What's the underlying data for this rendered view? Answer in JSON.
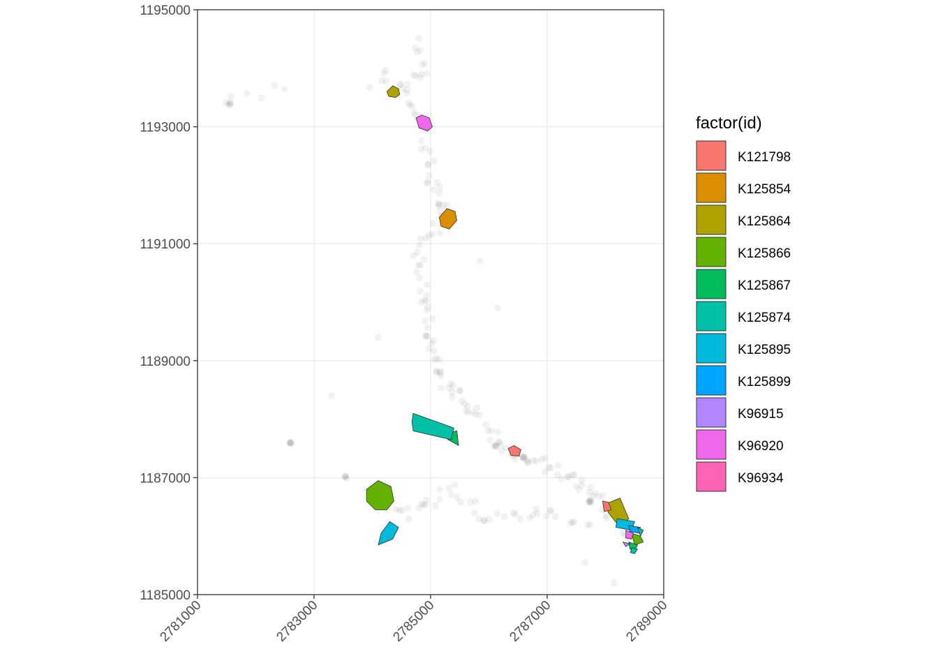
{
  "chart_data": {
    "type": "scatter",
    "xlim": [
      2781000,
      2789000
    ],
    "ylim": [
      1185000,
      1195000
    ],
    "x_ticks": [
      2781000,
      2783000,
      2785000,
      2787000,
      2789000
    ],
    "y_ticks": [
      1185000,
      1187000,
      1189000,
      1191000,
      1193000,
      1195000
    ],
    "x_tick_labels": [
      "2781000",
      "2783000",
      "2785000",
      "2787000",
      "2789000"
    ],
    "y_tick_labels": [
      "1185000",
      "1187000",
      "1189000",
      "1191000",
      "1193000",
      "1195000"
    ],
    "xlabel": "",
    "ylabel": "",
    "grid": true,
    "legend": {
      "title": "factor(id)",
      "placement": "right",
      "entries": [
        {
          "name": "K121798",
          "color": "#F8766D"
        },
        {
          "name": "K125854",
          "color": "#DB8E00"
        },
        {
          "name": "K125864",
          "color": "#AEA200"
        },
        {
          "name": "K125866",
          "color": "#64B200"
        },
        {
          "name": "K125867",
          "color": "#00BD5C"
        },
        {
          "name": "K125874",
          "color": "#00C1A7"
        },
        {
          "name": "K125895",
          "color": "#00BADE"
        },
        {
          "name": "K125899",
          "color": "#00A6FF"
        },
        {
          "name": "K96915",
          "color": "#B385FF"
        },
        {
          "name": "K96920",
          "color": "#EF67EB"
        },
        {
          "name": "K96934",
          "color": "#FF63B6"
        }
      ]
    },
    "point_style": {
      "color": "#000000",
      "opacity": 0.05
    },
    "point_paths": [
      {
        "from": [
          2784800,
          1194500
        ],
        "to": [
          2784900,
          1194000
        ],
        "n": 6
      },
      {
        "from": [
          2784900,
          1194000
        ],
        "to": [
          2784500,
          1193700
        ],
        "n": 8
      },
      {
        "from": [
          2784500,
          1193700
        ],
        "to": [
          2784900,
          1193000
        ],
        "n": 10
      },
      {
        "from": [
          2784900,
          1193000
        ],
        "to": [
          2785000,
          1192000
        ],
        "n": 12
      },
      {
        "from": [
          2785000,
          1192000
        ],
        "to": [
          2785300,
          1191500
        ],
        "n": 10
      },
      {
        "from": [
          2785300,
          1191500
        ],
        "to": [
          2784800,
          1190900
        ],
        "n": 12
      },
      {
        "from": [
          2784800,
          1190900
        ],
        "to": [
          2785000,
          1189600
        ],
        "n": 16
      },
      {
        "from": [
          2785000,
          1189600
        ],
        "to": [
          2785100,
          1188700
        ],
        "n": 14
      },
      {
        "from": [
          2785100,
          1188700
        ],
        "to": [
          2785600,
          1188300
        ],
        "n": 12
      },
      {
        "from": [
          2785600,
          1188300
        ],
        "to": [
          2786300,
          1187500
        ],
        "n": 16
      },
      {
        "from": [
          2786300,
          1187500
        ],
        "to": [
          2787400,
          1187000
        ],
        "n": 20
      },
      {
        "from": [
          2787400,
          1187000
        ],
        "to": [
          2787900,
          1186600
        ],
        "n": 12
      },
      {
        "from": [
          2787900,
          1186600
        ],
        "to": [
          2788500,
          1185900
        ],
        "n": 12
      },
      {
        "from": [
          2784200,
          1186700
        ],
        "to": [
          2784700,
          1186400
        ],
        "n": 8
      },
      {
        "from": [
          2784700,
          1186400
        ],
        "to": [
          2785200,
          1186700
        ],
        "n": 8
      },
      {
        "from": [
          2785300,
          1186900
        ],
        "to": [
          2786000,
          1186300
        ],
        "n": 10
      },
      {
        "from": [
          2786000,
          1186300
        ],
        "to": [
          2787000,
          1186400
        ],
        "n": 12
      },
      {
        "from": [
          2787000,
          1186400
        ],
        "to": [
          2787800,
          1186200
        ],
        "n": 8
      },
      {
        "from": [
          2781500,
          1193400
        ],
        "to": [
          2782400,
          1193700
        ],
        "n": 6
      },
      {
        "from": [
          2784000,
          1193700
        ],
        "to": [
          2784300,
          1193900
        ],
        "n": 5
      }
    ],
    "point_clusters": [
      {
        "x": 2782600,
        "y": 1187600,
        "n": 5
      },
      {
        "x": 2783550,
        "y": 1187000,
        "n": 4
      },
      {
        "x": 2781550,
        "y": 1193400,
        "n": 4
      },
      {
        "x": 2787750,
        "y": 1186600,
        "n": 5
      },
      {
        "x": 2786600,
        "y": 1187350,
        "n": 5
      },
      {
        "x": 2786100,
        "y": 1187550,
        "n": 4
      }
    ],
    "point_outliers": [
      [
        2783300,
        1188400
      ],
      [
        2784100,
        1189400
      ],
      [
        2787650,
        1185550
      ],
      [
        2788150,
        1185200
      ],
      [
        2785850,
        1190700
      ],
      [
        2786150,
        1189900
      ]
    ],
    "polygons": [
      {
        "name": "K125864",
        "points": [
          [
            2784250,
            1193600
          ],
          [
            2784350,
            1193700
          ],
          [
            2784450,
            1193650
          ],
          [
            2784470,
            1193550
          ],
          [
            2784400,
            1193500
          ],
          [
            2784280,
            1193520
          ]
        ]
      },
      {
        "name": "K96920",
        "points": [
          [
            2784750,
            1193150
          ],
          [
            2784850,
            1193200
          ],
          [
            2784980,
            1193150
          ],
          [
            2785030,
            1193000
          ],
          [
            2784950,
            1192930
          ],
          [
            2784800,
            1192980
          ]
        ]
      },
      {
        "name": "K125854",
        "points": [
          [
            2785150,
            1191450
          ],
          [
            2785280,
            1191600
          ],
          [
            2785420,
            1191550
          ],
          [
            2785450,
            1191400
          ],
          [
            2785320,
            1191250
          ],
          [
            2785180,
            1191300
          ]
        ]
      },
      {
        "name": "K125867",
        "points": [
          [
            2785250,
            1187750
          ],
          [
            2785450,
            1187800
          ],
          [
            2785480,
            1187550
          ],
          [
            2785300,
            1187650
          ]
        ]
      },
      {
        "name": "K125874",
        "points": [
          [
            2784700,
            1188100
          ],
          [
            2785400,
            1187850
          ],
          [
            2785350,
            1187650
          ],
          [
            2784700,
            1187800
          ],
          [
            2784680,
            1187950
          ]
        ]
      },
      {
        "name": "K121798",
        "points": [
          [
            2786330,
            1187500
          ],
          [
            2786430,
            1187550
          ],
          [
            2786550,
            1187480
          ],
          [
            2786520,
            1187370
          ],
          [
            2786380,
            1187380
          ]
        ]
      },
      {
        "name": "K125866",
        "points": [
          [
            2783900,
            1186800
          ],
          [
            2784100,
            1186950
          ],
          [
            2784320,
            1186850
          ],
          [
            2784370,
            1186600
          ],
          [
            2784250,
            1186450
          ],
          [
            2784050,
            1186450
          ],
          [
            2783900,
            1186600
          ]
        ]
      },
      {
        "name": "K125895",
        "points": [
          [
            2784300,
            1186250
          ],
          [
            2784450,
            1186150
          ],
          [
            2784350,
            1185950
          ],
          [
            2784100,
            1185850
          ],
          [
            2784150,
            1186050
          ]
        ]
      },
      {
        "name": "K125864",
        "points": [
          [
            2788000,
            1186550
          ],
          [
            2788250,
            1186650
          ],
          [
            2788400,
            1186300
          ],
          [
            2788250,
            1186150
          ],
          [
            2788050,
            1186400
          ]
        ]
      },
      {
        "name": "K121798",
        "points": [
          [
            2787950,
            1186600
          ],
          [
            2788050,
            1186580
          ],
          [
            2788100,
            1186450
          ],
          [
            2787980,
            1186420
          ]
        ]
      },
      {
        "name": "K125895",
        "points": [
          [
            2788200,
            1186300
          ],
          [
            2788500,
            1186250
          ],
          [
            2788450,
            1186100
          ],
          [
            2788180,
            1186150
          ]
        ]
      },
      {
        "name": "K125899",
        "points": [
          [
            2788400,
            1186180
          ],
          [
            2788600,
            1186150
          ],
          [
            2788580,
            1186050
          ],
          [
            2788420,
            1186080
          ]
        ]
      },
      {
        "name": "K125874",
        "points": [
          [
            2788550,
            1186150
          ],
          [
            2788650,
            1186100
          ],
          [
            2788600,
            1186000
          ]
        ]
      },
      {
        "name": "K125866",
        "points": [
          [
            2788450,
            1186050
          ],
          [
            2788600,
            1186000
          ],
          [
            2788650,
            1185900
          ],
          [
            2788500,
            1185850
          ]
        ]
      },
      {
        "name": "K96920",
        "points": [
          [
            2788350,
            1186100
          ],
          [
            2788480,
            1186050
          ],
          [
            2788450,
            1185950
          ],
          [
            2788350,
            1185970
          ]
        ]
      },
      {
        "name": "K125867",
        "points": [
          [
            2788400,
            1185900
          ],
          [
            2788550,
            1185850
          ],
          [
            2788500,
            1185750
          ],
          [
            2788420,
            1185780
          ]
        ]
      },
      {
        "name": "K96915",
        "points": [
          [
            2788300,
            1185900
          ],
          [
            2788420,
            1185870
          ],
          [
            2788350,
            1185820
          ]
        ]
      },
      {
        "name": "K125874",
        "points": [
          [
            2788450,
            1185800
          ],
          [
            2788550,
            1185780
          ],
          [
            2788500,
            1185700
          ],
          [
            2788430,
            1185720
          ]
        ]
      }
    ]
  }
}
